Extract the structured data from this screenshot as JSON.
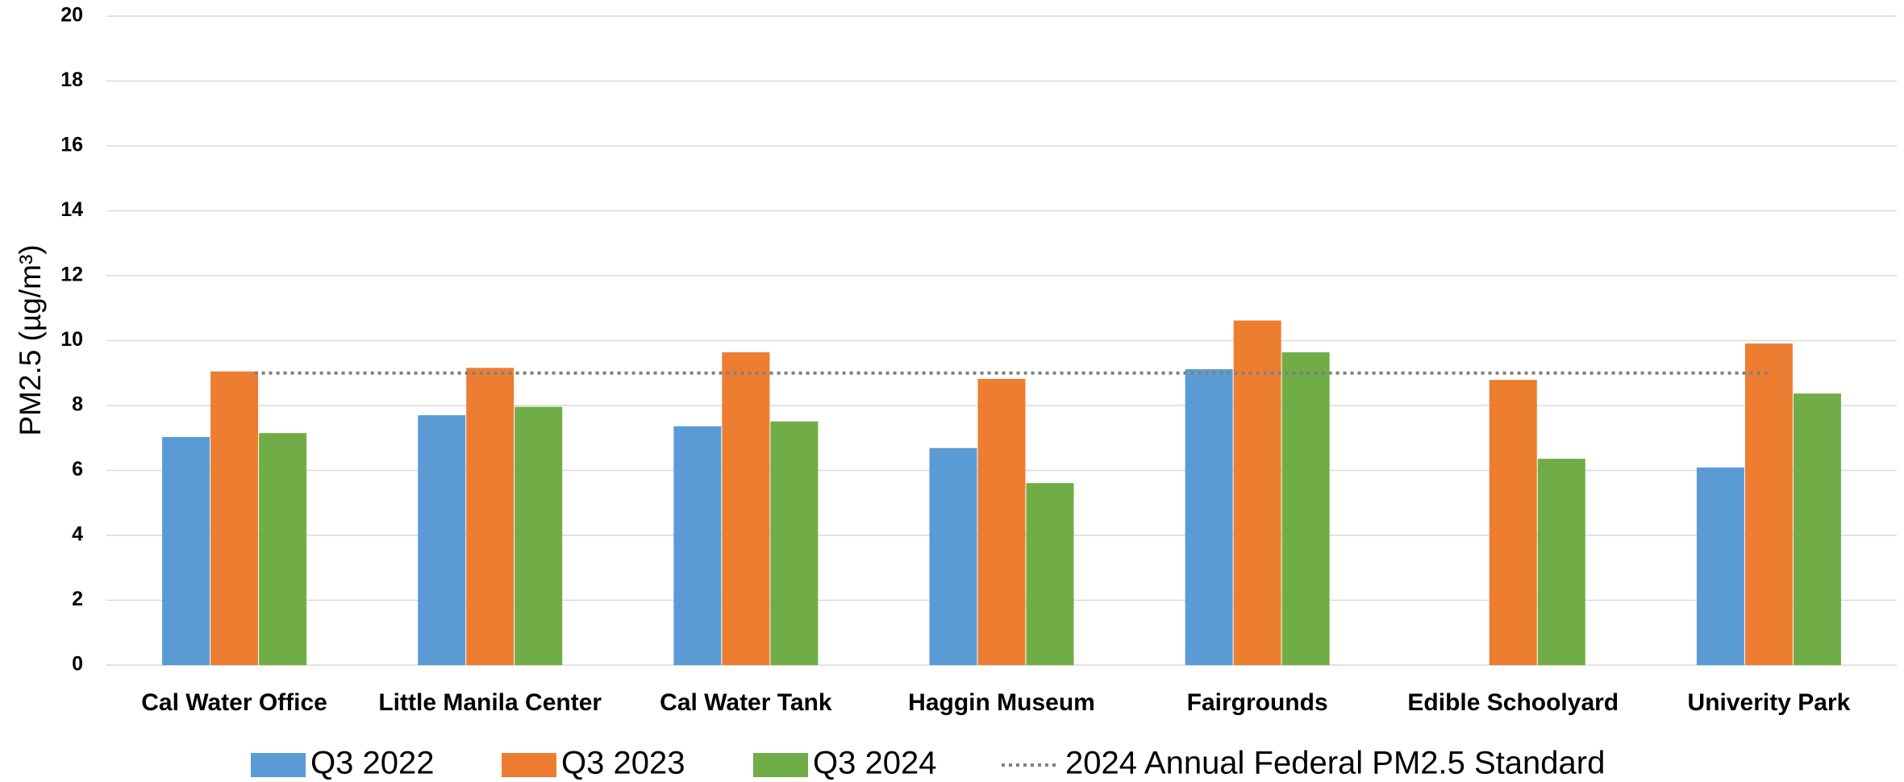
{
  "chart_data": {
    "type": "bar",
    "y_label": "PM2.5 (µg/m³)",
    "categories": [
      "Cal Water Office",
      "Little Manila Center",
      "Cal Water Tank",
      "Haggin Museum",
      "Fairgrounds",
      "Edible Schoolyard",
      "Univerity Park"
    ],
    "series": [
      {
        "name": "Q3 2022",
        "color": "#5b9bd5",
        "values": [
          7.03,
          7.7,
          7.36,
          6.69,
          9.12,
          null,
          6.09
        ]
      },
      {
        "name": "Q3 2023",
        "color": "#ed7d31",
        "values": [
          9.05,
          9.16,
          9.64,
          8.82,
          10.62,
          8.79,
          9.91
        ]
      },
      {
        "name": "Q3 2024",
        "color": "#70ad47",
        "values": [
          7.15,
          7.96,
          7.51,
          5.61,
          9.64,
          6.36,
          8.37
        ]
      }
    ],
    "reference_line": {
      "name": "2024 Annual Federal PM2.5 Standard",
      "value": 9,
      "color": "#808080"
    },
    "ylim": [
      0,
      20
    ],
    "yticks": [
      0,
      2,
      4,
      6,
      8,
      10,
      12,
      14,
      16,
      18,
      20
    ],
    "grid": true
  }
}
